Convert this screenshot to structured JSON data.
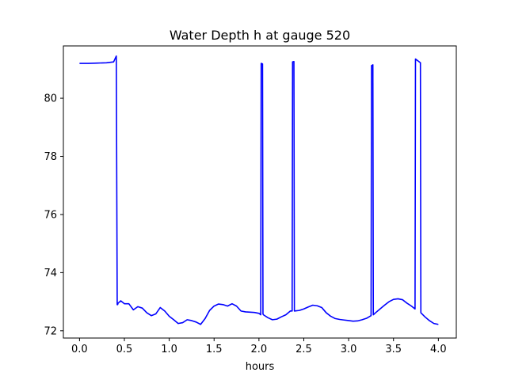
{
  "chart_data": {
    "type": "line",
    "title": "Water Depth h at gauge 520",
    "xlabel": "hours",
    "ylabel": "",
    "xlim": [
      -0.18,
      4.2
    ],
    "ylim": [
      71.75,
      81.8
    ],
    "xticks": [
      0.0,
      0.5,
      1.0,
      1.5,
      2.0,
      2.5,
      3.0,
      3.5,
      4.0
    ],
    "xtick_labels": [
      "0.0",
      "0.5",
      "1.0",
      "1.5",
      "2.0",
      "2.5",
      "3.0",
      "3.5",
      "4.0"
    ],
    "yticks": [
      72,
      74,
      76,
      78,
      80
    ],
    "ytick_labels": [
      "72",
      "74",
      "76",
      "78",
      "80"
    ],
    "grid": false,
    "line_color": "#0000ff",
    "series": [
      {
        "x": [
          0.0,
          0.1,
          0.2,
          0.3,
          0.38,
          0.41,
          0.42,
          0.425,
          0.43,
          0.46,
          0.5,
          0.55,
          0.6,
          0.65,
          0.7,
          0.75,
          0.8,
          0.85,
          0.9,
          0.95,
          1.0,
          1.05,
          1.1,
          1.15,
          1.2,
          1.25,
          1.3,
          1.35,
          1.4,
          1.45,
          1.5,
          1.55,
          1.6,
          1.65,
          1.7,
          1.75,
          1.8,
          1.85,
          1.9,
          1.95,
          2.0,
          2.02,
          2.025,
          2.04,
          2.045,
          2.05,
          2.1,
          2.15,
          2.2,
          2.25,
          2.3,
          2.35,
          2.37,
          2.375,
          2.39,
          2.395,
          2.4,
          2.45,
          2.5,
          2.55,
          2.6,
          2.65,
          2.7,
          2.75,
          2.8,
          2.85,
          2.9,
          2.95,
          3.0,
          3.05,
          3.1,
          3.15,
          3.2,
          3.25,
          3.255,
          3.27,
          3.275,
          3.3,
          3.35,
          3.4,
          3.45,
          3.5,
          3.55,
          3.6,
          3.65,
          3.7,
          3.74,
          3.745,
          3.8,
          3.805,
          3.85,
          3.9,
          3.95,
          4.0
        ],
        "y": [
          81.2,
          81.2,
          81.21,
          81.22,
          81.25,
          81.45,
          72.9,
          72.9,
          72.95,
          73.03,
          72.93,
          72.93,
          72.72,
          72.83,
          72.78,
          72.62,
          72.52,
          72.58,
          72.8,
          72.68,
          72.5,
          72.38,
          72.25,
          72.28,
          72.38,
          72.35,
          72.3,
          72.22,
          72.42,
          72.7,
          72.85,
          72.92,
          72.9,
          72.85,
          72.93,
          72.85,
          72.68,
          72.65,
          72.64,
          72.63,
          72.6,
          72.55,
          81.2,
          81.18,
          72.58,
          72.55,
          72.45,
          72.38,
          72.4,
          72.48,
          72.55,
          72.68,
          72.68,
          81.25,
          81.26,
          72.68,
          72.68,
          72.7,
          72.75,
          72.82,
          72.88,
          72.86,
          72.8,
          72.62,
          72.5,
          72.42,
          72.39,
          72.37,
          72.35,
          72.33,
          72.34,
          72.38,
          72.43,
          72.52,
          81.12,
          81.15,
          72.55,
          72.62,
          72.75,
          72.88,
          73.0,
          73.08,
          73.1,
          73.07,
          72.95,
          72.85,
          72.75,
          81.35,
          81.22,
          72.62,
          72.48,
          72.35,
          72.25,
          72.22
        ]
      }
    ]
  }
}
